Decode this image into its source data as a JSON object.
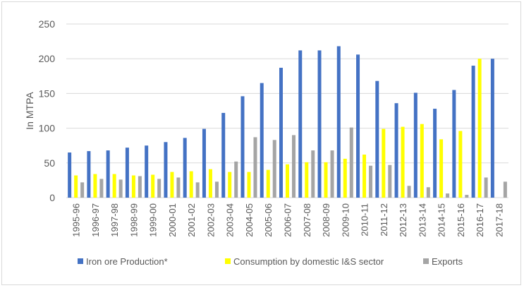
{
  "chart_data": {
    "type": "bar",
    "title": "",
    "xlabel": "",
    "ylabel": "In MTPA",
    "ylim": [
      0,
      250
    ],
    "yticks": [
      0,
      50,
      100,
      150,
      200,
      250
    ],
    "grid": true,
    "legend_position": "bottom",
    "categories": [
      "1995-96",
      "1996-97",
      "1997-98",
      "1998-99",
      "1999-00",
      "2000-01",
      "2001-02",
      "2002-03",
      "2003-04",
      "2004-05",
      "2005-06",
      "2006-07",
      "2007-08",
      "2008-09",
      "2009-10",
      "2010-11",
      "2011-12",
      "2012-13",
      "2013-14",
      "2014-15",
      "2015-16",
      "2016-17",
      "2017-18"
    ],
    "series": [
      {
        "name": "Iron ore Production*",
        "color": "#4472c4",
        "values": [
          65,
          67,
          68,
          72,
          75,
          80,
          86,
          99,
          122,
          146,
          165,
          187,
          212,
          212,
          218,
          206,
          168,
          136,
          151,
          128,
          155,
          190,
          200
        ]
      },
      {
        "name": "Consumption by domestic I&S sector",
        "color": "#ffff00",
        "values": [
          32,
          34,
          34,
          32,
          33,
          37,
          38,
          41,
          37,
          37,
          40,
          48,
          51,
          51,
          56,
          62,
          99,
          102,
          106,
          84,
          96,
          200,
          null
        ]
      },
      {
        "name": "Exports",
        "color": "#a5a5a5",
        "values": [
          22,
          27,
          26,
          31,
          27,
          29,
          22,
          23,
          52,
          87,
          83,
          90,
          68,
          68,
          101,
          46,
          47,
          17,
          15,
          6,
          4,
          29,
          23
        ]
      }
    ]
  }
}
